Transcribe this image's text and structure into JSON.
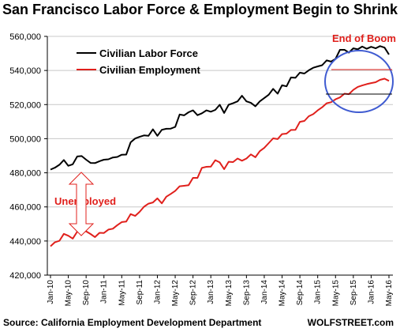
{
  "chart_data": {
    "type": "line",
    "title": "San Francisco Labor Force & Employment Begin to Shrink",
    "x": [
      "Jan-10",
      "Feb-10",
      "Mar-10",
      "Apr-10",
      "May-10",
      "Jun-10",
      "Jul-10",
      "Aug-10",
      "Sep-10",
      "Oct-10",
      "Nov-10",
      "Dec-10",
      "Jan-11",
      "Feb-11",
      "Mar-11",
      "Apr-11",
      "May-11",
      "Jun-11",
      "Jul-11",
      "Aug-11",
      "Sep-11",
      "Oct-11",
      "Nov-11",
      "Dec-11",
      "Jan-12",
      "Feb-12",
      "Mar-12",
      "Apr-12",
      "May-12",
      "Jun-12",
      "Jul-12",
      "Aug-12",
      "Sep-12",
      "Oct-12",
      "Nov-12",
      "Dec-12",
      "Jan-13",
      "Feb-13",
      "Mar-13",
      "Apr-13",
      "May-13",
      "Jun-13",
      "Jul-13",
      "Aug-13",
      "Sep-13",
      "Oct-13",
      "Nov-13",
      "Dec-13",
      "Jan-14",
      "Feb-14",
      "Mar-14",
      "Apr-14",
      "May-14",
      "Jun-14",
      "Jul-14",
      "Aug-14",
      "Sep-14",
      "Oct-14",
      "Nov-14",
      "Dec-14",
      "Jan-15",
      "Feb-15",
      "Mar-15",
      "Apr-15",
      "May-15",
      "Jun-15",
      "Jul-15",
      "Aug-15",
      "Sep-15",
      "Oct-15",
      "Nov-15",
      "Dec-15",
      "Jan-16",
      "Feb-16",
      "Mar-16",
      "Apr-16",
      "May-16"
    ],
    "x_tick_labels": [
      "Jan-10",
      "May-10",
      "Sep-10",
      "Jan-11",
      "May-11",
      "Sep-11",
      "Jan-12",
      "May-12",
      "Sep-12",
      "Jan-13",
      "May-13",
      "Sep-13",
      "Jan-14",
      "May-14",
      "Sep-14",
      "Jan-15",
      "May-15",
      "Sep-15",
      "Jan-16",
      "May-16"
    ],
    "ylim": [
      420000,
      560000
    ],
    "y_ticks": [
      420000,
      440000,
      460000,
      480000,
      500000,
      520000,
      540000,
      560000
    ],
    "y_tick_labels": [
      "420,000",
      "440,000",
      "460,000",
      "480,000",
      "500,000",
      "520,000",
      "540,000",
      "560,000"
    ],
    "grid": true,
    "legend_position": "top-left",
    "series": [
      {
        "name": "Civilian Labor Force",
        "color": "#000000",
        "values": [
          481900,
          483000,
          484700,
          487500,
          484100,
          485000,
          489600,
          489800,
          487700,
          485800,
          485700,
          486800,
          487700,
          487900,
          489000,
          489300,
          490600,
          490700,
          497900,
          500100,
          501100,
          501900,
          501700,
          505500,
          501700,
          505200,
          505800,
          505900,
          506900,
          514200,
          513700,
          515500,
          516600,
          513800,
          514900,
          516600,
          515800,
          516900,
          519900,
          515100,
          519900,
          520800,
          521900,
          525200,
          521900,
          521000,
          519000,
          521900,
          523800,
          525800,
          529200,
          526400,
          531300,
          530700,
          535900,
          535700,
          538700,
          538200,
          540100,
          541600,
          542400,
          543100,
          545900,
          545200,
          546800,
          552100,
          552100,
          550500,
          553000,
          552400,
          554000,
          552700,
          553900,
          553000,
          554300,
          553400,
          549400
        ]
      },
      {
        "name": "Civilian Employment",
        "color": "#e0201c",
        "values": [
          436900,
          439300,
          440100,
          444200,
          443100,
          441400,
          445500,
          445700,
          445700,
          444100,
          442300,
          444800,
          444700,
          446700,
          447200,
          449300,
          451100,
          451400,
          455800,
          454700,
          457100,
          460100,
          461900,
          462600,
          465000,
          462100,
          466000,
          467600,
          469400,
          472100,
          472400,
          472700,
          477000,
          477000,
          482900,
          483500,
          483600,
          487400,
          486100,
          482100,
          486500,
          486300,
          488400,
          487100,
          488400,
          490800,
          489100,
          492700,
          494600,
          497400,
          500200,
          499800,
          502700,
          503000,
          505100,
          505200,
          509900,
          510400,
          513200,
          514400,
          516600,
          518400,
          520800,
          521400,
          523100,
          524200,
          526400,
          526100,
          528600,
          530400,
          531200,
          532000,
          532600,
          533100,
          534500,
          535200,
          533900
        ]
      }
    ],
    "annotations": [
      {
        "text": "End of Boom",
        "color": "#e0201c"
      },
      {
        "text": "Unemployed",
        "color": "#e0201c"
      }
    ]
  },
  "footer": {
    "source": "Source: California Employment Development Department",
    "brand": "WOLFSTREET.com"
  }
}
